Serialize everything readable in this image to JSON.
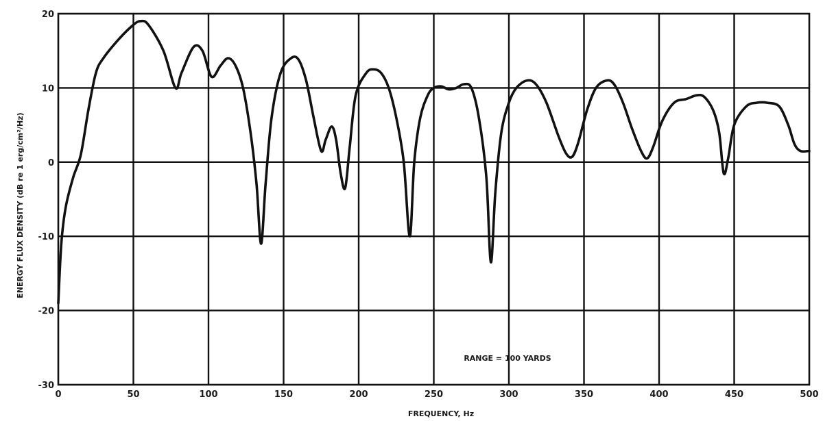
{
  "chart_data": {
    "type": "line",
    "title": "",
    "xlabel": "FREQUENCY, Hz",
    "ylabel": "ENERGY FLUX DENSITY (dB re 1 erg/cm²/Hz)",
    "xlim": [
      0,
      500
    ],
    "ylim": [
      -30,
      20
    ],
    "grid": true,
    "x_ticks": [
      0,
      50,
      100,
      150,
      200,
      250,
      300,
      350,
      400,
      450,
      500
    ],
    "y_ticks": [
      20,
      10,
      0,
      -10,
      -20,
      -30
    ],
    "x_tick_labels": [
      "0",
      "50",
      "100",
      "150",
      "200",
      "250",
      "300",
      "350",
      "400",
      "450",
      "500"
    ],
    "y_tick_labels": [
      "20",
      "10",
      "0",
      "-10",
      "-20",
      "-30"
    ],
    "annotation": "RANGE = 100 YARDS",
    "series": [
      {
        "x": [
          0,
          2,
          5,
          10,
          15,
          20,
          25,
          30,
          40,
          50,
          55,
          60,
          70,
          78,
          82,
          90,
          96,
          102,
          108,
          113,
          118,
          123,
          128,
          132,
          135,
          138,
          142,
          148,
          155,
          160,
          165,
          170,
          175,
          178,
          182,
          185,
          188,
          191,
          194,
          198,
          205,
          210,
          215,
          220,
          225,
          230,
          234,
          237,
          241,
          246,
          250,
          255,
          260,
          265,
          270,
          275,
          280,
          285,
          288,
          291,
          295,
          300,
          305,
          312,
          318,
          325,
          333,
          338,
          342,
          346,
          352,
          358,
          365,
          370,
          376,
          382,
          388,
          392,
          396,
          402,
          410,
          418,
          425,
          430,
          436,
          440,
          443,
          446,
          450,
          458,
          465,
          472,
          480,
          486,
          490,
          494,
          500
        ],
        "y": [
          -19,
          -11,
          -6,
          -2,
          1,
          7,
          12,
          14,
          16.5,
          18.5,
          19,
          18.5,
          15,
          10,
          12,
          15.5,
          15,
          11.5,
          13,
          14,
          13,
          10,
          4,
          -3,
          -11,
          -3,
          6,
          12,
          14,
          13.8,
          11,
          6,
          1.5,
          3,
          4.8,
          3,
          -1.5,
          -3.5,
          2,
          9,
          12,
          12.5,
          12,
          10,
          6,
          0,
          -10,
          0,
          6,
          9,
          10,
          10.2,
          9.8,
          10,
          10.5,
          10,
          6,
          -2,
          -13.5,
          -4,
          4,
          8,
          10,
          11,
          10.5,
          8,
          3.5,
          1.2,
          0.7,
          2.5,
          7,
          10,
          11,
          10.5,
          8,
          4.5,
          1.5,
          0.5,
          2,
          5.5,
          8,
          8.5,
          9,
          8.8,
          7,
          4,
          -1.5,
          0.5,
          5,
          7.5,
          8,
          8,
          7.5,
          5,
          2.5,
          1.5,
          1.5
        ]
      }
    ]
  }
}
